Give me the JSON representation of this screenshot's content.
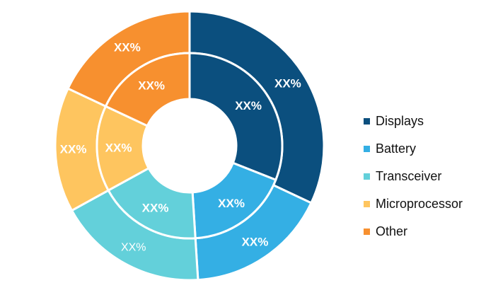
{
  "chart_data": {
    "type": "pie",
    "variant": "double-donut",
    "categories": [
      "Displays",
      "Battery",
      "Transceiver",
      "Microprocessor",
      "Other"
    ],
    "colors": [
      "#0b4f7e",
      "#34afe4",
      "#63d0da",
      "#fec55f",
      "#f7902f"
    ],
    "series": [
      {
        "ring": "inner",
        "values": [
          31,
          18,
          18,
          15,
          18
        ],
        "labels": [
          "XX%",
          "XX%",
          "XX%",
          "XX%",
          "XX%"
        ]
      },
      {
        "ring": "outer",
        "values": [
          32,
          17,
          18,
          15,
          18
        ],
        "labels": [
          "XX%",
          "XX%",
          "XX%",
          "XX%",
          "XX%"
        ]
      }
    ],
    "legend_position": "right"
  }
}
